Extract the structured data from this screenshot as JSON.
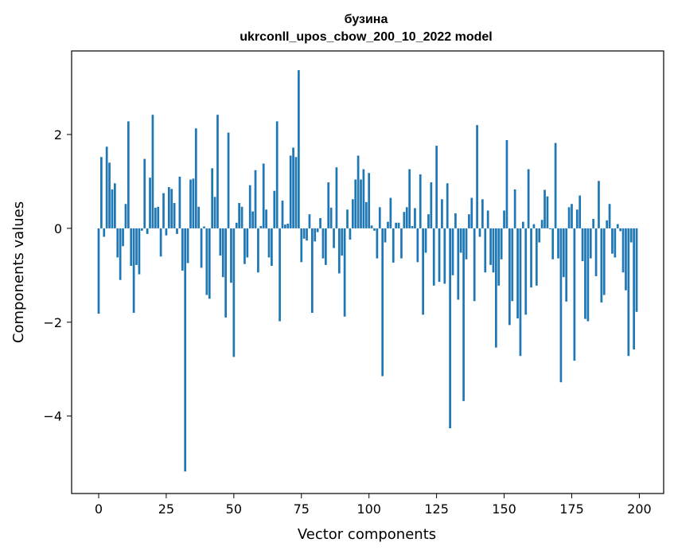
{
  "chart_data": {
    "type": "bar",
    "title_line1": "бузина",
    "title_line2": "ukrconll_upos_cbow_200_10_2022 model",
    "xlabel": "Vector components",
    "ylabel": "Components values",
    "xlim": [
      -10,
      209
    ],
    "ylim": [
      -5.65,
      3.78
    ],
    "xticks": [
      0,
      25,
      50,
      75,
      100,
      125,
      150,
      175,
      200
    ],
    "xtick_labels": [
      "0",
      "25",
      "50",
      "75",
      "100",
      "125",
      "150",
      "175",
      "200"
    ],
    "yticks": [
      -4,
      -2,
      0,
      2
    ],
    "ytick_labels": [
      "−4",
      "−2",
      "0",
      "2"
    ],
    "bar_color": "#1f77b4",
    "x": [
      0,
      1,
      2,
      3,
      4,
      5,
      6,
      7,
      8,
      9,
      10,
      11,
      12,
      13,
      14,
      15,
      16,
      17,
      18,
      19,
      20,
      21,
      22,
      23,
      24,
      25,
      26,
      27,
      28,
      29,
      30,
      31,
      32,
      33,
      34,
      35,
      36,
      37,
      38,
      39,
      40,
      41,
      42,
      43,
      44,
      45,
      46,
      47,
      48,
      49,
      50,
      51,
      52,
      53,
      54,
      55,
      56,
      57,
      58,
      59,
      60,
      61,
      62,
      63,
      64,
      65,
      66,
      67,
      68,
      69,
      70,
      71,
      72,
      73,
      74,
      75,
      76,
      77,
      78,
      79,
      80,
      81,
      82,
      83,
      84,
      85,
      86,
      87,
      88,
      89,
      90,
      91,
      92,
      93,
      94,
      95,
      96,
      97,
      98,
      99,
      100,
      101,
      102,
      103,
      104,
      105,
      106,
      107,
      108,
      109,
      110,
      111,
      112,
      113,
      114,
      115,
      116,
      117,
      118,
      119,
      120,
      121,
      122,
      123,
      124,
      125,
      126,
      127,
      128,
      129,
      130,
      131,
      132,
      133,
      134,
      135,
      136,
      137,
      138,
      139,
      140,
      141,
      142,
      143,
      144,
      145,
      146,
      147,
      148,
      149,
      150,
      151,
      152,
      153,
      154,
      155,
      156,
      157,
      158,
      159,
      160,
      161,
      162,
      163,
      164,
      165,
      166,
      167,
      168,
      169,
      170,
      171,
      172,
      173,
      174,
      175,
      176,
      177,
      178,
      179,
      180,
      181,
      182,
      183,
      184,
      185,
      186,
      187,
      188,
      189,
      190,
      191,
      192,
      193,
      194,
      195,
      196,
      197,
      198,
      199
    ],
    "values": [
      -1.82,
      1.52,
      -0.18,
      1.74,
      1.4,
      0.83,
      0.96,
      -0.62,
      -1.1,
      -0.38,
      0.52,
      2.28,
      -0.8,
      -1.8,
      -0.78,
      -0.98,
      -0.05,
      1.48,
      -0.12,
      1.08,
      2.42,
      0.44,
      0.46,
      -0.6,
      0.75,
      -0.15,
      0.88,
      0.84,
      0.54,
      -0.12,
      1.1,
      -0.9,
      -5.18,
      -0.74,
      1.04,
      1.06,
      2.13,
      0.46,
      -0.84,
      0.04,
      -1.42,
      -1.5,
      1.28,
      0.67,
      2.42,
      -0.58,
      -1.04,
      -1.9,
      2.04,
      -1.16,
      -2.74,
      0.12,
      0.54,
      0.46,
      -0.76,
      -0.62,
      0.92,
      0.36,
      1.24,
      -0.94,
      0.05,
      1.38,
      0.4,
      -0.62,
      -0.8,
      0.8,
      2.28,
      -1.98,
      0.59,
      0.08,
      0.1,
      1.55,
      1.72,
      1.52,
      3.37,
      -0.72,
      -0.22,
      -0.26,
      0.3,
      -1.8,
      -0.28,
      -0.08,
      0.22,
      -0.64,
      -0.78,
      0.98,
      0.44,
      -0.42,
      1.3,
      -0.96,
      -0.58,
      -1.88,
      0.4,
      -0.24,
      0.62,
      1.04,
      1.55,
      1.04,
      1.26,
      0.56,
      1.18,
      0.06,
      -0.05,
      -0.64,
      0.45,
      -3.15,
      -0.3,
      0.14,
      0.65,
      -0.73,
      0.12,
      0.12,
      -0.64,
      0.35,
      0.45,
      1.26,
      0.05,
      0.43,
      -0.72,
      1.15,
      -1.84,
      -0.52,
      0.3,
      0.98,
      -1.22,
      1.76,
      -1.14,
      0.62,
      -1.18,
      0.96,
      -4.26,
      -1.0,
      0.32,
      -1.52,
      -0.52,
      -3.68,
      -0.66,
      0.3,
      0.65,
      -1.55,
      2.2,
      -0.18,
      0.62,
      -0.94,
      0.38,
      -0.78,
      -0.94,
      -2.54,
      -1.22,
      -0.66,
      0.38,
      1.88,
      -2.06,
      -1.55,
      0.83,
      -1.92,
      -2.72,
      0.14,
      -1.84,
      1.26,
      -1.26,
      0.09,
      -1.22,
      -0.3,
      0.18,
      0.82,
      0.68,
      -0.02,
      -0.66,
      1.82,
      -0.64,
      -3.28,
      -1.04,
      -1.56,
      0.45,
      0.52,
      -2.82,
      0.4,
      0.7,
      -0.7,
      -1.93,
      -1.98,
      -0.64,
      0.2,
      -1.02,
      1.01,
      -1.58,
      -1.42,
      0.17,
      0.52,
      -0.54,
      -0.62,
      0.09,
      -0.06,
      -0.94,
      -1.32,
      -2.72,
      -0.3,
      -2.58,
      -1.78
    ]
  }
}
